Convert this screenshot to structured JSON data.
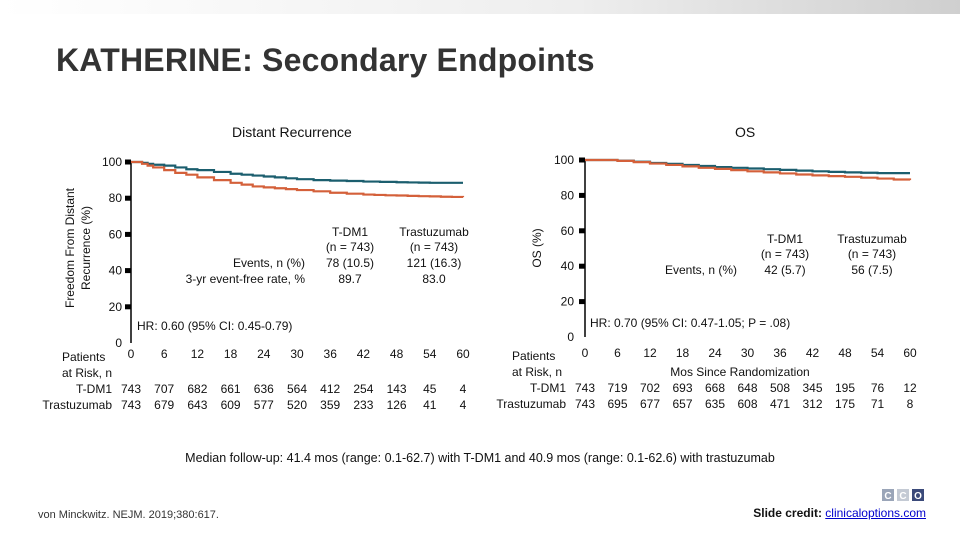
{
  "title": "KATHERINE: Secondary Endpoints",
  "footer": {
    "median": "Median follow-up: 41.4 mos (range: 0.1-62.7) with T-DM1 and 40.9 mos (range: 0.1-62.6) with trastuzumab",
    "citation": "von Minckwitz. NEJM. 2019;380:617.",
    "credit_label": "Slide credit: ",
    "credit_link": "clinicaloptions.com",
    "logo_text": "CCO"
  },
  "colors": {
    "tdm1": "#1b5e6e",
    "trastuzumab": "#d4603a"
  },
  "chart_data": [
    {
      "type": "line",
      "panel_title": "Distant Recurrence",
      "ylabel": "Freedom From Distant Recurrence (%)",
      "ylabel_lines": [
        "Freedom From Distant",
        "Recurrence (%)"
      ],
      "ylim": [
        0,
        100
      ],
      "yticks": [
        0,
        20,
        40,
        60,
        80,
        100
      ],
      "xlim": [
        0,
        60
      ],
      "xticks": [
        0,
        6,
        12,
        18,
        24,
        30,
        36,
        42,
        48,
        54,
        60
      ],
      "series": [
        {
          "name": "T-DM1",
          "x": [
            0,
            1,
            2,
            3,
            4,
            6,
            8,
            10,
            12,
            15,
            18,
            20,
            22,
            24,
            26,
            28,
            30,
            33,
            36,
            39,
            42,
            45,
            48,
            50,
            52,
            54,
            56,
            58,
            60
          ],
          "y": [
            100,
            100,
            99.5,
            99,
            98.5,
            98,
            97,
            96,
            95.5,
            94.5,
            93.5,
            93,
            92.5,
            92,
            91.5,
            91,
            90.5,
            90,
            89.7,
            89.5,
            89.2,
            89,
            88.8,
            88.7,
            88.6,
            88.5,
            88.5,
            88.5,
            88.5
          ]
        },
        {
          "name": "Trastuzumab",
          "x": [
            0,
            1,
            2,
            3,
            4,
            6,
            8,
            10,
            12,
            15,
            18,
            20,
            22,
            24,
            26,
            28,
            30,
            33,
            36,
            39,
            42,
            44,
            46,
            48,
            50,
            52,
            54,
            56,
            58,
            60
          ],
          "y": [
            100,
            100,
            99,
            98,
            97,
            95.5,
            94,
            93,
            91.5,
            90,
            88.5,
            87.5,
            86.5,
            86,
            85.5,
            85,
            84.5,
            83.8,
            83,
            82.5,
            82,
            81.8,
            81.6,
            81.5,
            81.3,
            81.1,
            81,
            80.8,
            80.7,
            80.5
          ]
        }
      ],
      "legend": {
        "row_labels": [
          "Events, n (%)",
          "3-yr event-free rate, %"
        ],
        "columns": [
          {
            "name": "T-DM1",
            "n": "(n = 743)",
            "events": "78 (10.5)",
            "rate": "89.7"
          },
          {
            "name": "Trastuzumab",
            "n": "(n = 743)",
            "events": "121 (16.3)",
            "rate": "83.0"
          }
        ]
      },
      "hr_text": "HR: 0.60 (95% CI: 0.45-0.79)",
      "risk_table": {
        "patients_label": "Patients",
        "at_risk_label": "at Risk, n",
        "x_axis_label": "",
        "rows": [
          {
            "label": "T-DM1",
            "values": [
              "743",
              "707",
              "682",
              "661",
              "636",
              "564",
              "412",
              "254",
              "143",
              "45",
              "4"
            ]
          },
          {
            "label": "Trastuzumab",
            "values": [
              "743",
              "679",
              "643",
              "609",
              "577",
              "520",
              "359",
              "233",
              "126",
              "41",
              "4"
            ]
          }
        ]
      }
    },
    {
      "type": "line",
      "panel_title": "OS",
      "ylabel": "OS (%)",
      "ylabel_lines": [
        "OS (%)"
      ],
      "ylim": [
        0,
        100
      ],
      "yticks": [
        0,
        20,
        40,
        60,
        80,
        100
      ],
      "xlim": [
        0,
        60
      ],
      "xticks": [
        0,
        6,
        12,
        18,
        24,
        30,
        36,
        42,
        48,
        54,
        60
      ],
      "series": [
        {
          "name": "T-DM1",
          "x": [
            0,
            3,
            6,
            9,
            12,
            15,
            18,
            21,
            24,
            27,
            30,
            33,
            36,
            39,
            42,
            45,
            48,
            51,
            54,
            57,
            60
          ],
          "y": [
            100,
            100,
            99.6,
            99,
            98.3,
            97.8,
            97.2,
            96.6,
            96,
            95.6,
            95.2,
            94.8,
            94.4,
            94,
            93.6,
            93.3,
            93,
            92.8,
            92.6,
            92.6,
            92.6
          ]
        },
        {
          "name": "Trastuzumab",
          "x": [
            0,
            3,
            6,
            9,
            12,
            15,
            18,
            21,
            24,
            27,
            30,
            33,
            36,
            39,
            42,
            45,
            48,
            51,
            54,
            57,
            60
          ],
          "y": [
            100,
            100,
            99.5,
            98.8,
            98,
            97.2,
            96.4,
            95.6,
            95,
            94.3,
            93.6,
            93,
            92.4,
            91.8,
            91.3,
            90.9,
            90.5,
            90,
            89.5,
            89,
            88.6
          ]
        }
      ],
      "legend": {
        "row_labels": [
          "Events, n (%)"
        ],
        "columns": [
          {
            "name": "T-DM1",
            "n": "(n = 743)",
            "events": "42 (5.7)"
          },
          {
            "name": "Trastuzumab",
            "n": "(n = 743)",
            "events": "56 (7.5)"
          }
        ]
      },
      "hr_text": "HR: 0.70 (95% CI: 0.47-1.05; P = .08)",
      "risk_table": {
        "patients_label": "Patients",
        "at_risk_label": "at Risk, n",
        "x_axis_label": "Mos Since Randomization",
        "rows": [
          {
            "label": "T-DM1",
            "values": [
              "743",
              "719",
              "702",
              "693",
              "668",
              "648",
              "508",
              "345",
              "195",
              "76",
              "12"
            ]
          },
          {
            "label": "Trastuzumab",
            "values": [
              "743",
              "695",
              "677",
              "657",
              "635",
              "608",
              "471",
              "312",
              "175",
              "71",
              "8"
            ]
          }
        ]
      }
    }
  ]
}
